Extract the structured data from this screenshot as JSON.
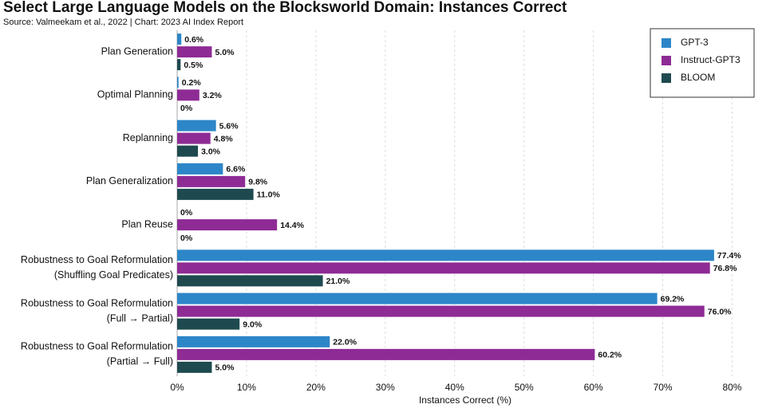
{
  "chart_data": {
    "type": "hbar",
    "title": "Select Large Language Models on the Blocksworld Domain: Instances Correct",
    "subtitle": "Source: Valmeekam et al., 2022 | Chart: 2023 AI Index Report",
    "x_label": "Instances Correct (%)",
    "categories": [
      [
        "Plan Generation"
      ],
      [
        "Optimal Planning"
      ],
      [
        "Replanning"
      ],
      [
        "Plan Generalization"
      ],
      [
        "Plan Reuse"
      ],
      [
        "Robustness to Goal Reformulation",
        "(Shuffling Goal Predicates)"
      ],
      [
        "Robustness to Goal Reformulation",
        "(Full → Partial)"
      ],
      [
        "Robustness to Goal Reformulation",
        "(Partial → Full)"
      ]
    ],
    "series": [
      {
        "name": "GPT-3",
        "color": "#2d86c8",
        "label_color": "#2d86c8",
        "values": [
          0.6,
          0.2,
          5.6,
          6.6,
          0,
          77.4,
          69.2,
          22.0
        ],
        "value_labels": [
          "0.6%",
          "0.2%",
          "5.6%",
          "6.6%",
          "0%",
          "77.4%",
          "69.2%",
          "22.0%"
        ]
      },
      {
        "name": "Instruct-GPT3",
        "color": "#8e2b95",
        "label_color": "#8e2b95",
        "values": [
          5.0,
          3.2,
          4.8,
          9.8,
          14.4,
          76.8,
          76.0,
          60.2
        ],
        "value_labels": [
          "5.0%",
          "3.2%",
          "4.8%",
          "9.8%",
          "14.4%",
          "76.8%",
          "76.0%",
          "60.2%"
        ]
      },
      {
        "name": "BLOOM",
        "color": "#1e4a4f",
        "label_color": "#1e3a3e",
        "values": [
          0.5,
          0,
          3.0,
          11.0,
          0,
          21.0,
          9.0,
          5.0
        ],
        "value_labels": [
          "0.5%",
          "0%",
          "3.0%",
          "11.0%",
          "0%",
          "21.0%",
          "9.0%",
          "5.0%"
        ]
      }
    ],
    "xlim": [
      0,
      85
    ],
    "xticks": [
      {
        "value": 0,
        "label": "0%"
      },
      {
        "value": 10,
        "label": "10%"
      },
      {
        "value": 20,
        "label": "20%"
      },
      {
        "value": 30,
        "label": "30%"
      },
      {
        "value": 40,
        "label": "40%"
      },
      {
        "value": 50,
        "label": "50%"
      },
      {
        "value": 60,
        "label": "60%"
      },
      {
        "value": 70,
        "label": "70%"
      },
      {
        "value": 80,
        "label": "80%"
      }
    ],
    "grid": true,
    "legend_position": "top-right"
  }
}
